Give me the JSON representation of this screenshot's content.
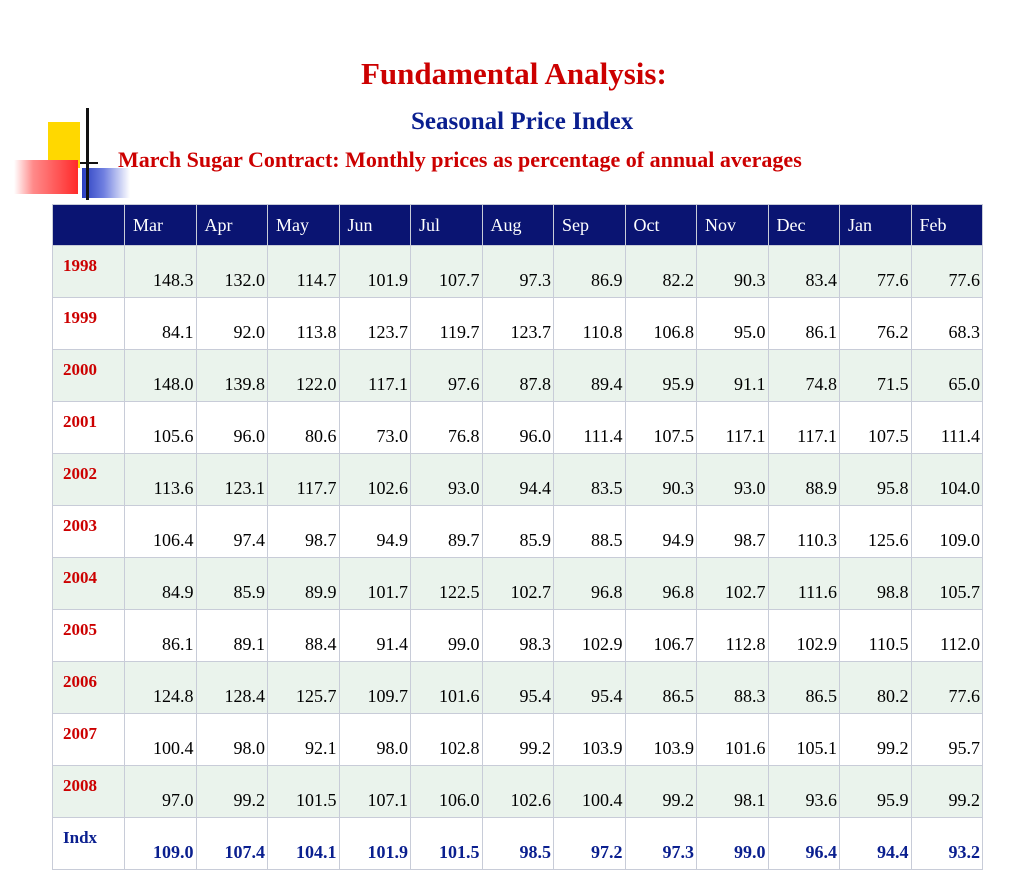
{
  "title": "Fundamental Analysis:",
  "subtitle": "Seasonal Price Index",
  "caption": "March Sugar Contract: Monthly prices as percentage of annual averages",
  "table": {
    "corner": "",
    "months": [
      "Mar",
      "Apr",
      "May",
      "Jun",
      "Jul",
      "Aug",
      "Sep",
      "Oct",
      "Nov",
      "Dec",
      "Jan",
      "Feb"
    ],
    "rows": [
      {
        "label": "1998",
        "values": [
          "148.3",
          "132.0",
          "114.7",
          "101.9",
          "107.7",
          "97.3",
          "86.9",
          "82.2",
          "90.3",
          "83.4",
          "77.6",
          "77.6"
        ]
      },
      {
        "label": "1999",
        "values": [
          "84.1",
          "92.0",
          "113.8",
          "123.7",
          "119.7",
          "123.7",
          "110.8",
          "106.8",
          "95.0",
          "86.1",
          "76.2",
          "68.3"
        ]
      },
      {
        "label": "2000",
        "values": [
          "148.0",
          "139.8",
          "122.0",
          "117.1",
          "97.6",
          "87.8",
          "89.4",
          "95.9",
          "91.1",
          "74.8",
          "71.5",
          "65.0"
        ]
      },
      {
        "label": "2001",
        "values": [
          "105.6",
          "96.0",
          "80.6",
          "73.0",
          "76.8",
          "96.0",
          "111.4",
          "107.5",
          "117.1",
          "117.1",
          "107.5",
          "111.4"
        ]
      },
      {
        "label": "2002",
        "values": [
          "113.6",
          "123.1",
          "117.7",
          "102.6",
          "93.0",
          "94.4",
          "83.5",
          "90.3",
          "93.0",
          "88.9",
          "95.8",
          "104.0"
        ]
      },
      {
        "label": "2003",
        "values": [
          "106.4",
          "97.4",
          "98.7",
          "94.9",
          "89.7",
          "85.9",
          "88.5",
          "94.9",
          "98.7",
          "110.3",
          "125.6",
          "109.0"
        ]
      },
      {
        "label": "2004",
        "values": [
          "84.9",
          "85.9",
          "89.9",
          "101.7",
          "122.5",
          "102.7",
          "96.8",
          "96.8",
          "102.7",
          "111.6",
          "98.8",
          "105.7"
        ]
      },
      {
        "label": "2005",
        "values": [
          "86.1",
          "89.1",
          "88.4",
          "91.4",
          "99.0",
          "98.3",
          "102.9",
          "106.7",
          "112.8",
          "102.9",
          "110.5",
          "112.0"
        ]
      },
      {
        "label": "2006",
        "values": [
          "124.8",
          "128.4",
          "125.7",
          "109.7",
          "101.6",
          "95.4",
          "95.4",
          "86.5",
          "88.3",
          "86.5",
          "80.2",
          "77.6"
        ]
      },
      {
        "label": "2007",
        "values": [
          "100.4",
          "98.0",
          "92.1",
          "98.0",
          "102.8",
          "99.2",
          "103.9",
          "103.9",
          "101.6",
          "105.1",
          "99.2",
          "95.7"
        ]
      },
      {
        "label": "2008",
        "values": [
          "97.0",
          "99.2",
          "101.5",
          "107.1",
          "106.0",
          "102.6",
          "100.4",
          "99.2",
          "98.1",
          "93.6",
          "95.9",
          "99.2"
        ]
      }
    ],
    "index_row": {
      "label": "Indx",
      "values": [
        "109.0",
        "107.4",
        "104.1",
        "101.9",
        "101.5",
        "98.5",
        "97.2",
        "97.3",
        "99.0",
        "96.4",
        "94.4",
        "93.2"
      ]
    }
  },
  "colors": {
    "title_red": "#cc0000",
    "subtitle_blue": "#0a1f8f",
    "header_navy": "#0a1472",
    "row_tint": "#eaf3ec"
  }
}
